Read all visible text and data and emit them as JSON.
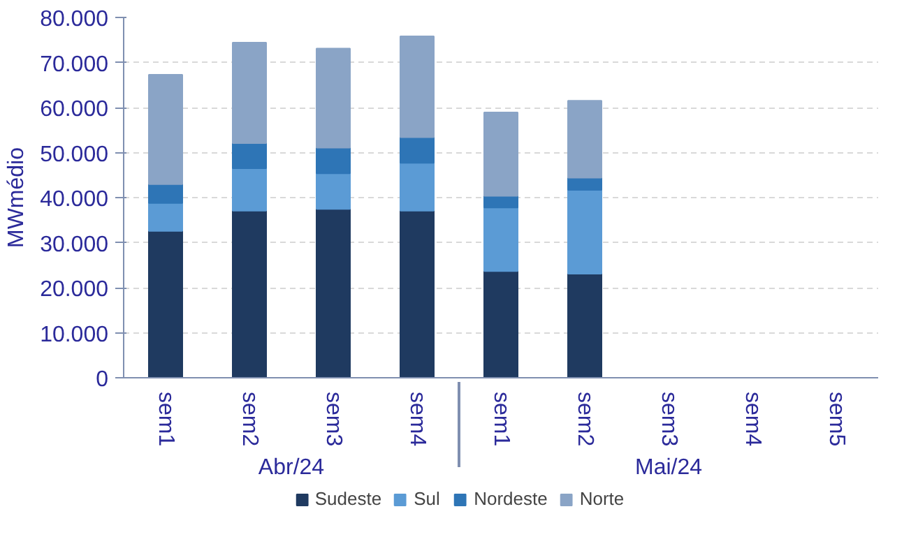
{
  "chart_data": {
    "type": "bar",
    "stacked": true,
    "ylabel": "MWmédio",
    "categories": [
      "sem1",
      "sem2",
      "sem3",
      "sem4",
      "sem1",
      "sem2",
      "sem3",
      "sem4",
      "sem5"
    ],
    "annotations": [
      "Abr/24",
      "Mai/24"
    ],
    "series": [
      {
        "name": "Sudeste",
        "color": "#1f3a60",
        "values": [
          32600,
          37100,
          37500,
          37100,
          23700,
          23100,
          null,
          null,
          null
        ]
      },
      {
        "name": "Sul",
        "color": "#5b9bd5",
        "values": [
          6200,
          9400,
          7900,
          10600,
          14100,
          18600,
          null,
          null,
          null
        ]
      },
      {
        "name": "Nordeste",
        "color": "#2e75b6",
        "values": [
          4200,
          5600,
          5700,
          5700,
          2600,
          2700,
          null,
          null,
          null
        ]
      },
      {
        "name": "Norte",
        "color": "#8aa4c6",
        "values": [
          24300,
          22300,
          22000,
          22400,
          18500,
          17100,
          null,
          null,
          null
        ]
      }
    ],
    "ylim": [
      0,
      80000
    ],
    "yticks": [
      0,
      {
        "value": 10000,
        "label": "10.000"
      },
      {
        "value": 20000,
        "label": "20.000"
      },
      {
        "value": 30000,
        "label": "30.000"
      },
      {
        "value": 40000,
        "label": "40.000"
      },
      {
        "value": 50000,
        "label": "50.000"
      },
      {
        "value": 60000,
        "label": "60.000"
      },
      {
        "value": 70000,
        "label": "70.000"
      },
      {
        "value": 80000,
        "label": "80.000"
      }
    ],
    "grid": "y",
    "legend": "bottom"
  }
}
